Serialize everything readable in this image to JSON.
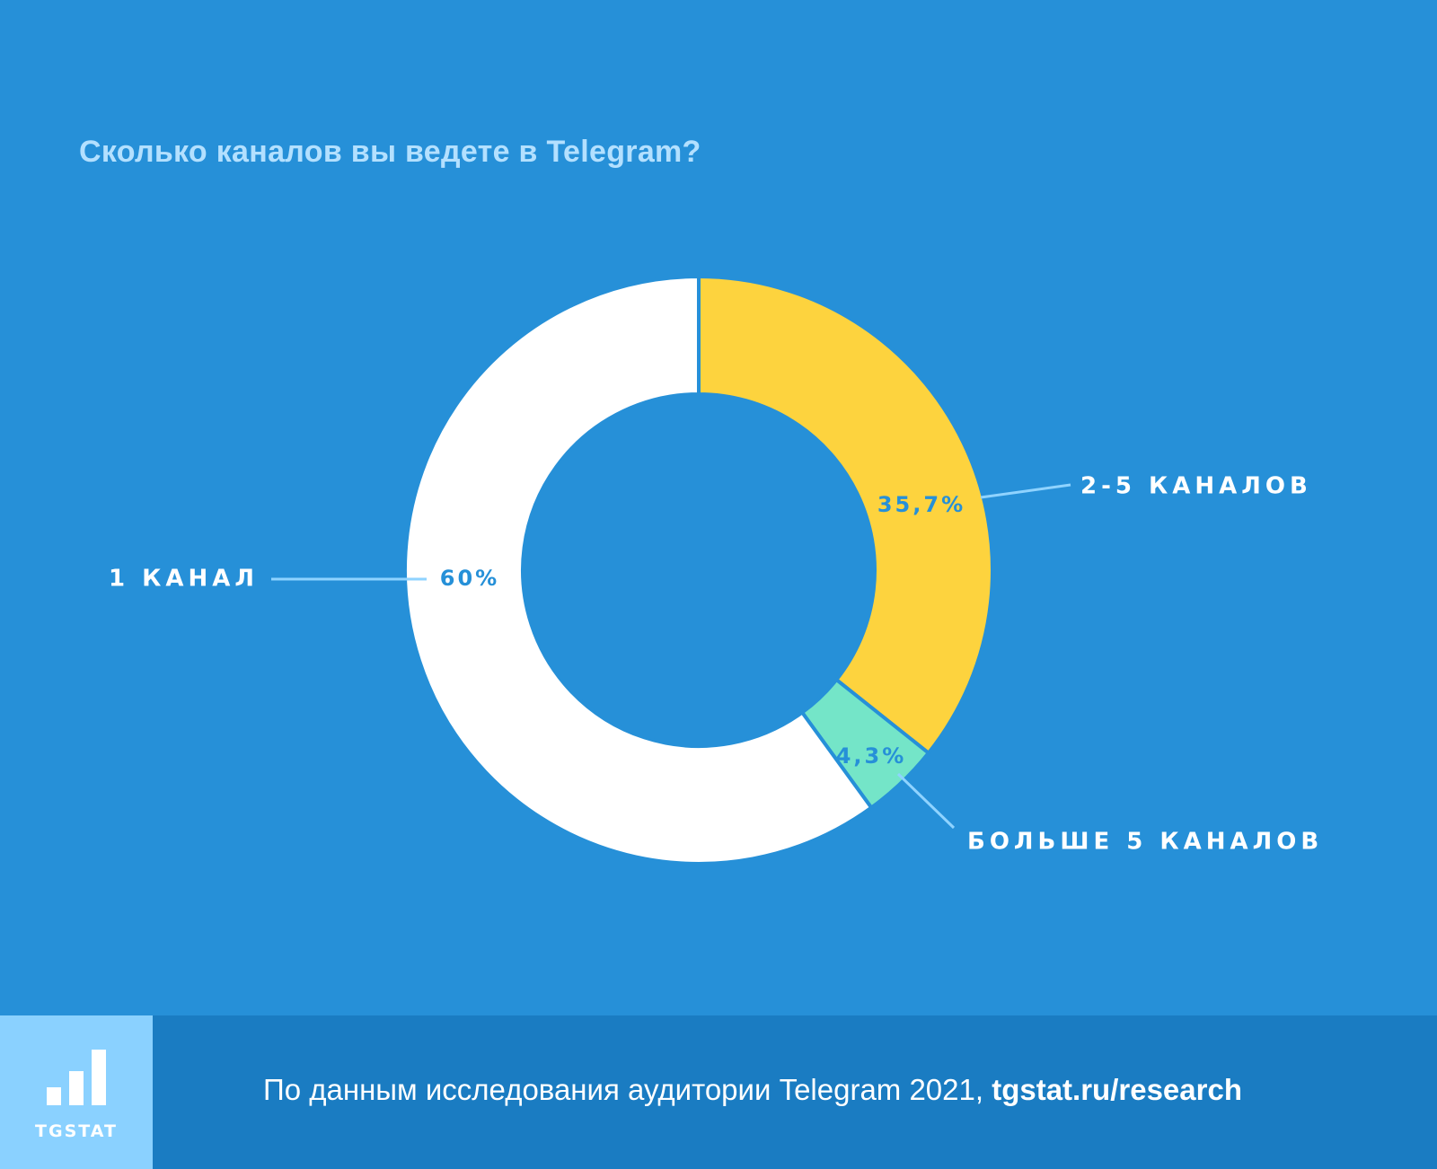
{
  "chart_data": {
    "type": "pie",
    "title": "Сколько каналов вы ведете в Telegram?",
    "slices": [
      {
        "label": "2-5 КАНАЛОВ",
        "value": 35.7,
        "value_label": "35,7%",
        "color": "#fdd33e"
      },
      {
        "label": "БОЛЬШЕ 5 КАНАЛОВ",
        "value": 4.3,
        "value_label": "4,3%",
        "color": "#74e5c8"
      },
      {
        "label": "1 КАНАЛ",
        "value": 60,
        "value_label": "60%",
        "color": "#ffffff"
      }
    ],
    "donut": true
  },
  "footer": {
    "logo_text": "TGSTAT",
    "source_text": "По данным исследования аудитории Telegram 2021, ",
    "source_link": "tgstat.ru/research"
  },
  "colors": {
    "background": "#2690d8",
    "footer": "#1a7cc2",
    "logo_box": "#8ad1ff",
    "title": "#b3e0ff",
    "leader_line": "#8fd3ff"
  },
  "icons": {
    "logo": "bar-chart-icon"
  }
}
